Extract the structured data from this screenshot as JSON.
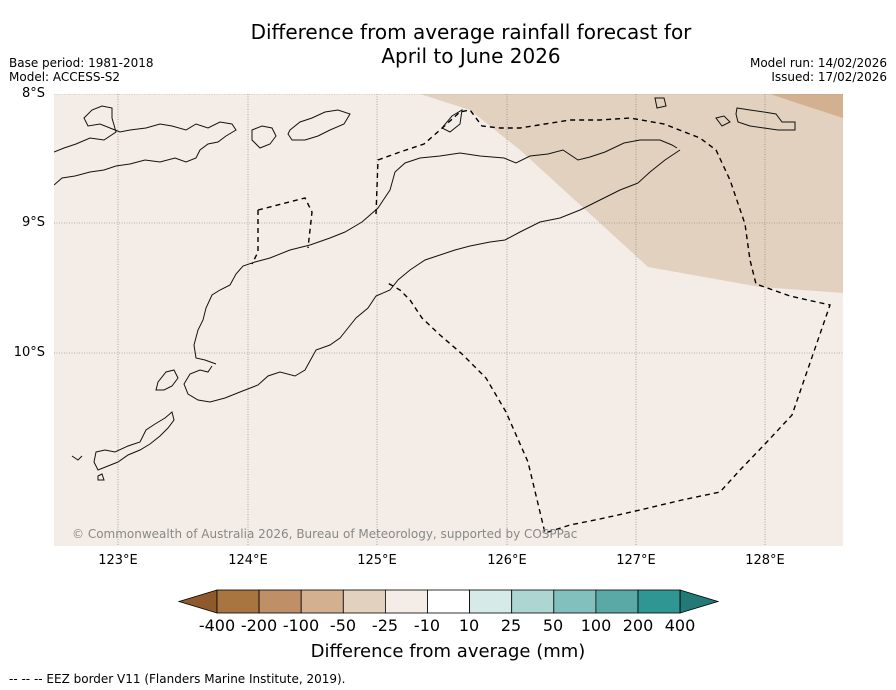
{
  "title": {
    "line1": "Difference from average rainfall forecast for",
    "line2": "April to June 2026"
  },
  "meta": {
    "base_period": "Base period: 1981-2018",
    "model": "Model: ACCESS-S2",
    "model_run": "Model run: 14/02/2026",
    "issued": "Issued: 17/02/2026"
  },
  "axes": {
    "lat_labels": [
      "8°S",
      "9°S",
      "10°S"
    ],
    "lon_labels": [
      "123°E",
      "124°E",
      "125°E",
      "126°E",
      "127°E",
      "128°E"
    ]
  },
  "colorbar": {
    "title": "Difference from average (mm)",
    "ticks": [
      "-400",
      "-200",
      "-100",
      "-50",
      "-25",
      "-10",
      "10",
      "25",
      "50",
      "100",
      "200",
      "400"
    ],
    "colors": [
      "#8e5a2c",
      "#a87440",
      "#bf9068",
      "#d3b08f",
      "#e3d1bf",
      "#f4ede7",
      "#ffffff",
      "#d6ebe8",
      "#add6d3",
      "#82c0bd",
      "#5aa9a6",
      "#2f9693",
      "#227976"
    ]
  },
  "map": {
    "background_color": "#f4ede7",
    "dry_zone_color": "#e3d1bf",
    "drier_zone_color": "#d3b08f",
    "copyright": "© Commonwealth of Australia 2026, Bureau of Meteorology, supported by COSPPac"
  },
  "footer": "--  --  -- EEZ border V11 (Flanders Marine Institute, 2019)."
}
